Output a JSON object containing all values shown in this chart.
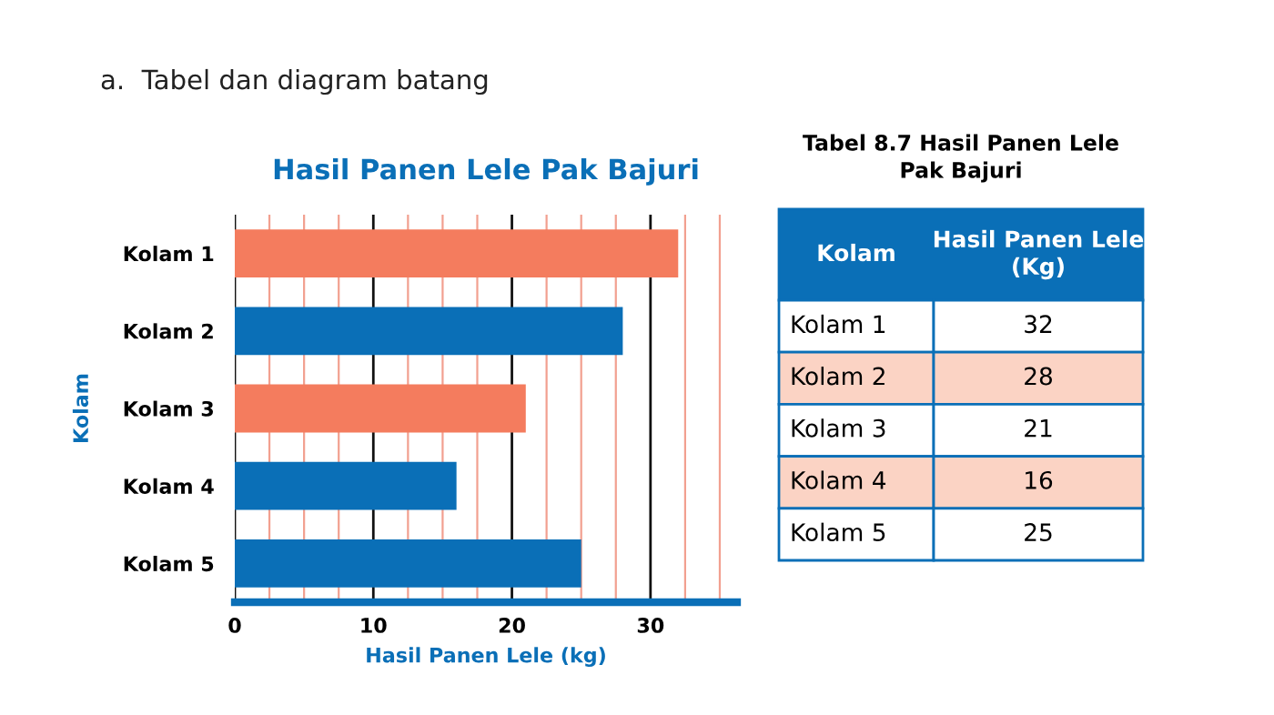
{
  "chart_data": {
    "type": "bar",
    "orientation": "horizontal",
    "title": "Hasil Panen Lele Pak Bajuri",
    "xlabel": "Hasil Panen Lele (kg)",
    "ylabel": "Kolam",
    "categories": [
      "Kolam 1",
      "Kolam 2",
      "Kolam 3",
      "Kolam 4",
      "Kolam 5"
    ],
    "values": [
      32,
      28,
      21,
      16,
      25
    ],
    "colors": [
      "#f47c5e",
      "#0a6fb7",
      "#f47c5e",
      "#0a6fb7",
      "#0a6fb7"
    ],
    "xlim": [
      0,
      36.25
    ],
    "xticks": [
      0,
      {
        "value": 2.5,
        "label": null
      },
      {
        "value": 5,
        "label": null
      },
      {
        "value": 7.5,
        "label": null
      },
      10,
      {
        "value": 12.5,
        "label": null
      },
      {
        "value": 15,
        "label": null
      },
      {
        "value": 17.5,
        "label": null
      },
      20,
      {
        "value": 22.5,
        "label": null
      },
      {
        "value": 25,
        "label": null
      },
      {
        "value": 27.5,
        "label": null
      },
      30,
      {
        "value": 32.5,
        "label": null
      },
      {
        "value": 35,
        "label": null
      }
    ],
    "grid": "x",
    "data_labels": true,
    "annotations": [
      "a.  Tabel dan diagram batang",
      "Tabel 8.7 Hasil Panen Lele\nPak Bajuri",
      "Kolam",
      "Hasil Panen Lele\n(Kg)"
    ]
  }
}
